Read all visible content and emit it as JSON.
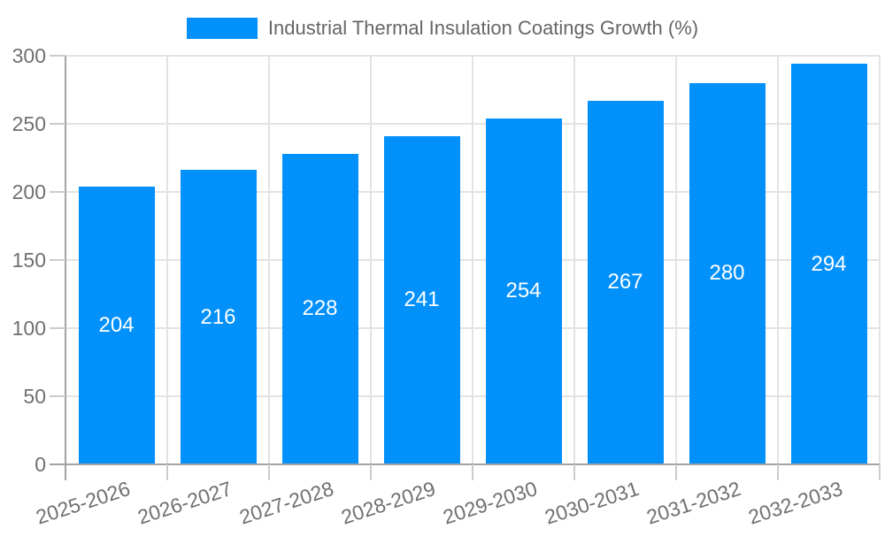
{
  "chart_data": {
    "type": "bar",
    "title": "Industrial Thermal Insulation Coatings Growth (%)",
    "categories": [
      "2025-2026",
      "2026-2027",
      "2027-2028",
      "2028-2029",
      "2029-2030",
      "2030-2031",
      "2031-2032",
      "2032-2033"
    ],
    "values": [
      204,
      216,
      228,
      241,
      254,
      267,
      280,
      294
    ],
    "xlabel": "",
    "ylabel": "",
    "ylim": [
      0,
      300
    ],
    "yticks": [
      0,
      50,
      100,
      150,
      200,
      250,
      300
    ],
    "grid": true,
    "legend_position": "top",
    "colors": {
      "bar": "#0290fb",
      "value_label": "#ffffff",
      "axis": "#a3a3a3",
      "gridline": "#e3e3e3",
      "tick_mark": "#cccccc",
      "axis_label": "#707070",
      "legend_text": "#666666",
      "background": "#ffffff"
    }
  }
}
